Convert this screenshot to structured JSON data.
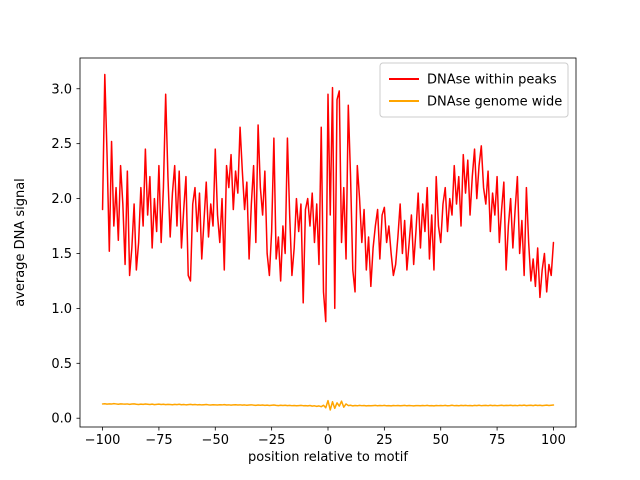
{
  "figure": {
    "background": "#ffffff"
  },
  "chart_data": {
    "type": "line",
    "title": "",
    "xlabel": "position relative to motif",
    "ylabel": "average DNA signal",
    "xlim": [
      -110,
      110
    ],
    "ylim": [
      -0.08,
      3.28
    ],
    "xticks": [
      -100,
      -75,
      -50,
      -25,
      0,
      25,
      50,
      75,
      100
    ],
    "yticks": [
      0.0,
      0.5,
      1.0,
      1.5,
      2.0,
      2.5,
      3.0
    ],
    "grid": false,
    "legend_position": "upper right",
    "x_range": {
      "start": -100,
      "end": 100,
      "step": 1
    },
    "series": [
      {
        "name": "DNAse within peaks",
        "color": "#ff0000",
        "linewidth": 1.5,
        "values": [
          1.9,
          3.13,
          2.4,
          1.52,
          2.52,
          1.75,
          2.1,
          1.62,
          2.3,
          1.95,
          1.4,
          2.25,
          1.3,
          1.55,
          1.95,
          1.35,
          1.6,
          2.1,
          1.75,
          2.45,
          1.85,
          2.2,
          1.55,
          2.0,
          1.7,
          2.3,
          1.6,
          2.1,
          2.95,
          2.2,
          1.65,
          2.05,
          2.3,
          1.75,
          2.25,
          1.55,
          1.9,
          2.2,
          1.3,
          1.25,
          1.95,
          2.1,
          1.7,
          2.05,
          1.45,
          1.8,
          2.15,
          1.65,
          1.95,
          1.75,
          2.45,
          1.85,
          1.6,
          2.0,
          1.35,
          2.3,
          2.1,
          2.4,
          1.9,
          2.25,
          2.05,
          2.65,
          2.25,
          1.9,
          2.15,
          1.45,
          1.95,
          2.3,
          1.6,
          2.67,
          2.1,
          1.85,
          2.25,
          1.5,
          1.3,
          1.7,
          2.55,
          1.45,
          1.65,
          1.25,
          1.75,
          1.5,
          2.55,
          1.85,
          1.3,
          1.55,
          2.0,
          1.7,
          1.95,
          1.05,
          1.9,
          2.0,
          1.75,
          2.05,
          1.6,
          1.95,
          1.4,
          2.65,
          1.15,
          0.88,
          2.95,
          1.85,
          3.01,
          1.0,
          2.9,
          2.98,
          1.6,
          2.1,
          1.45,
          2.85,
          2.2,
          1.35,
          1.15,
          2.3,
          2.0,
          1.6,
          1.9,
          1.35,
          1.65,
          1.2,
          1.55,
          1.75,
          1.9,
          1.45,
          1.85,
          1.92,
          1.6,
          1.75,
          1.5,
          1.3,
          1.4,
          1.65,
          1.95,
          1.5,
          1.8,
          1.35,
          1.6,
          1.85,
          1.4,
          1.7,
          2.05,
          1.55,
          1.95,
          1.7,
          2.1,
          1.45,
          1.85,
          1.35,
          2.2,
          1.75,
          1.6,
          1.95,
          2.1,
          1.7,
          2.0,
          1.85,
          2.3,
          1.95,
          2.2,
          1.75,
          2.4,
          2.05,
          2.35,
          1.85,
          2.2,
          2.45,
          2.0,
          2.3,
          2.48,
          2.1,
          1.95,
          2.25,
          1.7,
          2.05,
          1.85,
          2.2,
          1.6,
          1.9,
          2.15,
          1.35,
          1.75,
          2.0,
          1.55,
          1.9,
          2.2,
          1.5,
          1.8,
          1.3,
          2.1,
          1.6,
          1.25,
          1.45,
          1.2,
          1.55,
          1.1,
          1.35,
          1.5,
          1.15,
          1.4,
          1.3,
          1.6
        ]
      },
      {
        "name": "DNAse genome wide",
        "color": "#ffa500",
        "linewidth": 1.5,
        "values": [
          0.13,
          0.132,
          0.128,
          0.131,
          0.129,
          0.133,
          0.13,
          0.127,
          0.131,
          0.129,
          0.128,
          0.13,
          0.126,
          0.129,
          0.131,
          0.127,
          0.125,
          0.128,
          0.126,
          0.129,
          0.127,
          0.125,
          0.128,
          0.124,
          0.126,
          0.128,
          0.125,
          0.127,
          0.124,
          0.126,
          0.125,
          0.123,
          0.126,
          0.124,
          0.127,
          0.123,
          0.125,
          0.122,
          0.124,
          0.126,
          0.123,
          0.125,
          0.122,
          0.124,
          0.121,
          0.123,
          0.125,
          0.122,
          0.12,
          0.123,
          0.122,
          0.12,
          0.123,
          0.121,
          0.124,
          0.12,
          0.122,
          0.119,
          0.121,
          0.123,
          0.12,
          0.122,
          0.119,
          0.121,
          0.118,
          0.12,
          0.122,
          0.119,
          0.117,
          0.12,
          0.118,
          0.12,
          0.117,
          0.119,
          0.116,
          0.118,
          0.12,
          0.117,
          0.115,
          0.118,
          0.116,
          0.118,
          0.115,
          0.117,
          0.114,
          0.116,
          0.113,
          0.115,
          0.117,
          0.114,
          0.115,
          0.112,
          0.116,
          0.11,
          0.113,
          0.108,
          0.112,
          0.105,
          0.118,
          0.095,
          0.16,
          0.075,
          0.15,
          0.09,
          0.14,
          0.11,
          0.155,
          0.1,
          0.13,
          0.115,
          0.118,
          0.112,
          0.116,
          0.113,
          0.117,
          0.114,
          0.116,
          0.112,
          0.115,
          0.113,
          0.115,
          0.117,
          0.113,
          0.116,
          0.114,
          0.117,
          0.113,
          0.115,
          0.112,
          0.116,
          0.114,
          0.116,
          0.113,
          0.115,
          0.117,
          0.113,
          0.116,
          0.114,
          0.112,
          0.115,
          0.115,
          0.113,
          0.116,
          0.114,
          0.117,
          0.113,
          0.115,
          0.112,
          0.116,
          0.114,
          0.116,
          0.114,
          0.117,
          0.113,
          0.115,
          0.118,
          0.114,
          0.116,
          0.113,
          0.117,
          0.115,
          0.117,
          0.114,
          0.116,
          0.113,
          0.117,
          0.115,
          0.118,
          0.114,
          0.116,
          0.117,
          0.114,
          0.118,
          0.115,
          0.117,
          0.114,
          0.116,
          0.118,
          0.115,
          0.117,
          0.116,
          0.118,
          0.115,
          0.117,
          0.114,
          0.118,
          0.116,
          0.119,
          0.115,
          0.117,
          0.118,
          0.115,
          0.119,
          0.116,
          0.118,
          0.115,
          0.117,
          0.119,
          0.116,
          0.118,
          0.12
        ]
      }
    ]
  }
}
